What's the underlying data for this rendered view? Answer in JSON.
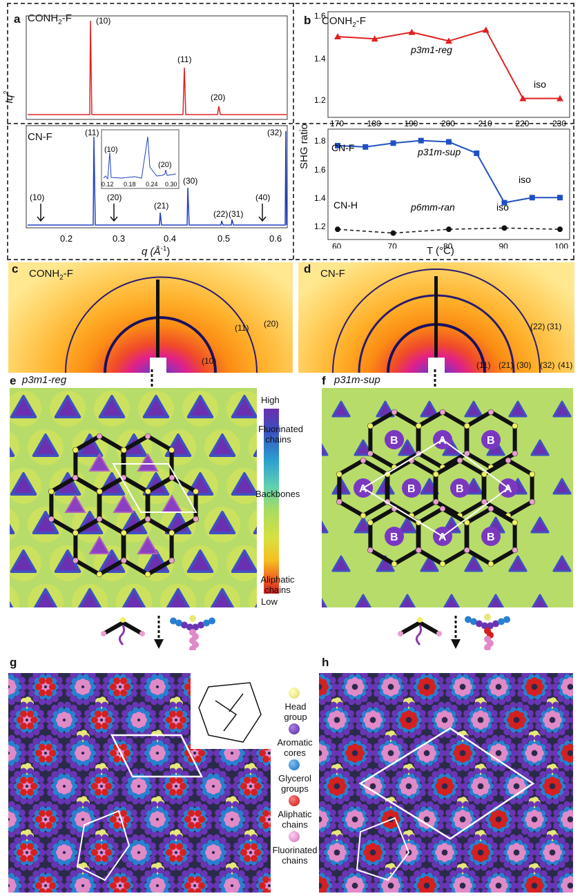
{
  "panels": {
    "a": {
      "letter": "a",
      "top_title": "CONH",
      "top_title_sub": "2",
      "top_title_suffix": "-F",
      "bottom_title": "CN-F",
      "ylabel": "Iq",
      "ylabel_sup": "2",
      "xlabel": "q (Å",
      "xlabel_sup": "-1",
      "xlabel_suffix": ")",
      "x_ticks": [
        "0.2",
        "0.3",
        "0.4",
        "0.5",
        "0.6"
      ],
      "top_peaks": [
        "(10)",
        "(11)",
        "(20)"
      ],
      "bottom_peaks": [
        "(11)",
        "(30)",
        "(21)",
        "(22)",
        "(31)",
        "(32)"
      ],
      "arrow_labels": [
        "(10)",
        "(20)",
        "(40)"
      ],
      "inset_peaks": [
        "(10)",
        "(20)"
      ],
      "inset_ticks": [
        "0.12",
        "0.18",
        "0.24",
        "0.30"
      ]
    },
    "b": {
      "letter": "b",
      "top_title": "CONH",
      "top_title_sub": "2",
      "top_title_suffix": "-F",
      "ylabel": "SHG ratio",
      "top_annot": "p3m1-reg",
      "top_iso": "iso",
      "top_x_ticks": [
        "170",
        "180",
        "190",
        "200",
        "210",
        "220",
        "230"
      ],
      "top_y_ticks": [
        "1.6",
        "1.4",
        "1.2"
      ],
      "bottom_series1": "CN-F",
      "bottom_series2": "CN-H",
      "bottom_annot1": "p31m-sup",
      "bottom_annot2": "p6mm-ran",
      "bottom_iso1": "iso",
      "bottom_iso2": "iso",
      "bottom_y_ticks": [
        "1.8",
        "1.6",
        "1.4",
        "1.2"
      ],
      "bottom_x_ticks": [
        "60",
        "70",
        "80",
        "90",
        "100"
      ],
      "xlabel": "T (°C)"
    },
    "c": {
      "letter": "c",
      "title": "CONH",
      "title_sub": "2",
      "title_suffix": "-F",
      "labels": [
        "(10)",
        "(11)",
        "(20)"
      ]
    },
    "d": {
      "letter": "d",
      "title": "CN-F",
      "labels": [
        "(11)",
        "(21)",
        "(30)",
        "(32)",
        "(41)",
        "(22)",
        "(31)"
      ]
    },
    "e": {
      "letter": "e",
      "title": "p3m1-reg"
    },
    "f": {
      "letter": "f",
      "title": "p31m-sup",
      "labels_a": "A",
      "labels_b": "B"
    },
    "colorbar": {
      "high": "High",
      "low": "Low",
      "fluor": "Fluorinated chains",
      "back": "Backbones",
      "aliph": "Aliphatic chains"
    },
    "g": {
      "letter": "g"
    },
    "h": {
      "letter": "h"
    },
    "legend": [
      {
        "label": "Head group",
        "color": "#e8e87a"
      },
      {
        "label": "Aromatic cores",
        "color": "#6a35b5"
      },
      {
        "label": "Glycerol groups",
        "color": "#2a7fd0"
      },
      {
        "label": "Aliphatic chains",
        "color": "#d42020"
      },
      {
        "label": "Fluorinated chains",
        "color": "#e18ac8"
      }
    ]
  },
  "chart_data": [
    {
      "type": "line",
      "title": "CONH2-F",
      "xlabel": "",
      "ylabel": "SHG ratio",
      "x": [
        170,
        180,
        190,
        200,
        210,
        220,
        230
      ],
      "series": [
        {
          "name": "CONH2-F",
          "values": [
            1.5,
            1.49,
            1.52,
            1.48,
            1.53,
            1.22,
            1.22
          ]
        }
      ],
      "ylim": [
        1.15,
        1.6
      ]
    },
    {
      "type": "line",
      "xlabel": "T (°C)",
      "ylabel": "SHG ratio",
      "x": [
        60,
        65,
        70,
        75,
        80,
        85,
        90,
        95,
        100
      ],
      "series": [
        {
          "name": "CN-F",
          "values": [
            1.83,
            1.82,
            1.85,
            1.87,
            1.86,
            1.77,
            1.38,
            1.42,
            1.42
          ]
        },
        {
          "name": "CN-H",
          "x": [
            60,
            70,
            80,
            90,
            100
          ],
          "values": [
            1.17,
            1.14,
            1.17,
            1.18,
            1.17
          ]
        }
      ],
      "ylim": [
        1.1,
        1.95
      ]
    }
  ]
}
